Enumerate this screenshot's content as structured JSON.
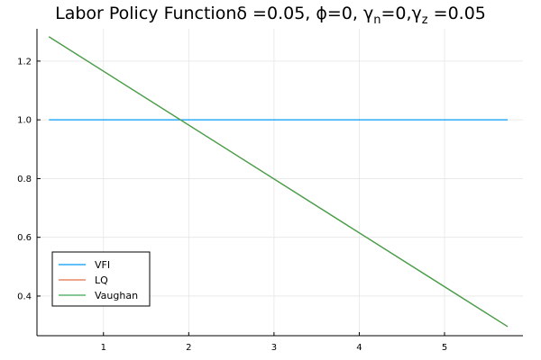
{
  "chart_data": {
    "type": "line",
    "title": {
      "main": "Labor Policy Function",
      "params": "δ =0.05, ϕ=0, γ",
      "sub_n": "n",
      "mid": "=0,γ",
      "sub_z": "z",
      "tail": " =0.05"
    },
    "xlabel": "",
    "ylabel": "",
    "xlim": [
      0.22,
      5.92
    ],
    "ylim": [
      0.265,
      1.31
    ],
    "x_ticks": [
      1,
      2,
      3,
      4,
      5
    ],
    "y_ticks": [
      0.4,
      0.6,
      0.8,
      1.0,
      1.2
    ],
    "x_tick_labels": [
      "1",
      "2",
      "3",
      "4",
      "5"
    ],
    "y_tick_labels": [
      "0.4",
      "0.6",
      "0.8",
      "1.0",
      "1.2"
    ],
    "grid": true,
    "legend_position": "bottom-left",
    "series": [
      {
        "name": "VFI",
        "color": "#009af9",
        "x": [
          0.36,
          5.74
        ],
        "y": [
          1.0,
          1.0
        ]
      },
      {
        "name": "LQ",
        "color": "#e26f46",
        "x": [
          0.36,
          5.74
        ],
        "y": [
          1.283,
          0.296
        ]
      },
      {
        "name": "Vaughan",
        "color": "#3da44d",
        "x": [
          0.36,
          5.74
        ],
        "y": [
          1.283,
          0.296
        ]
      }
    ]
  }
}
